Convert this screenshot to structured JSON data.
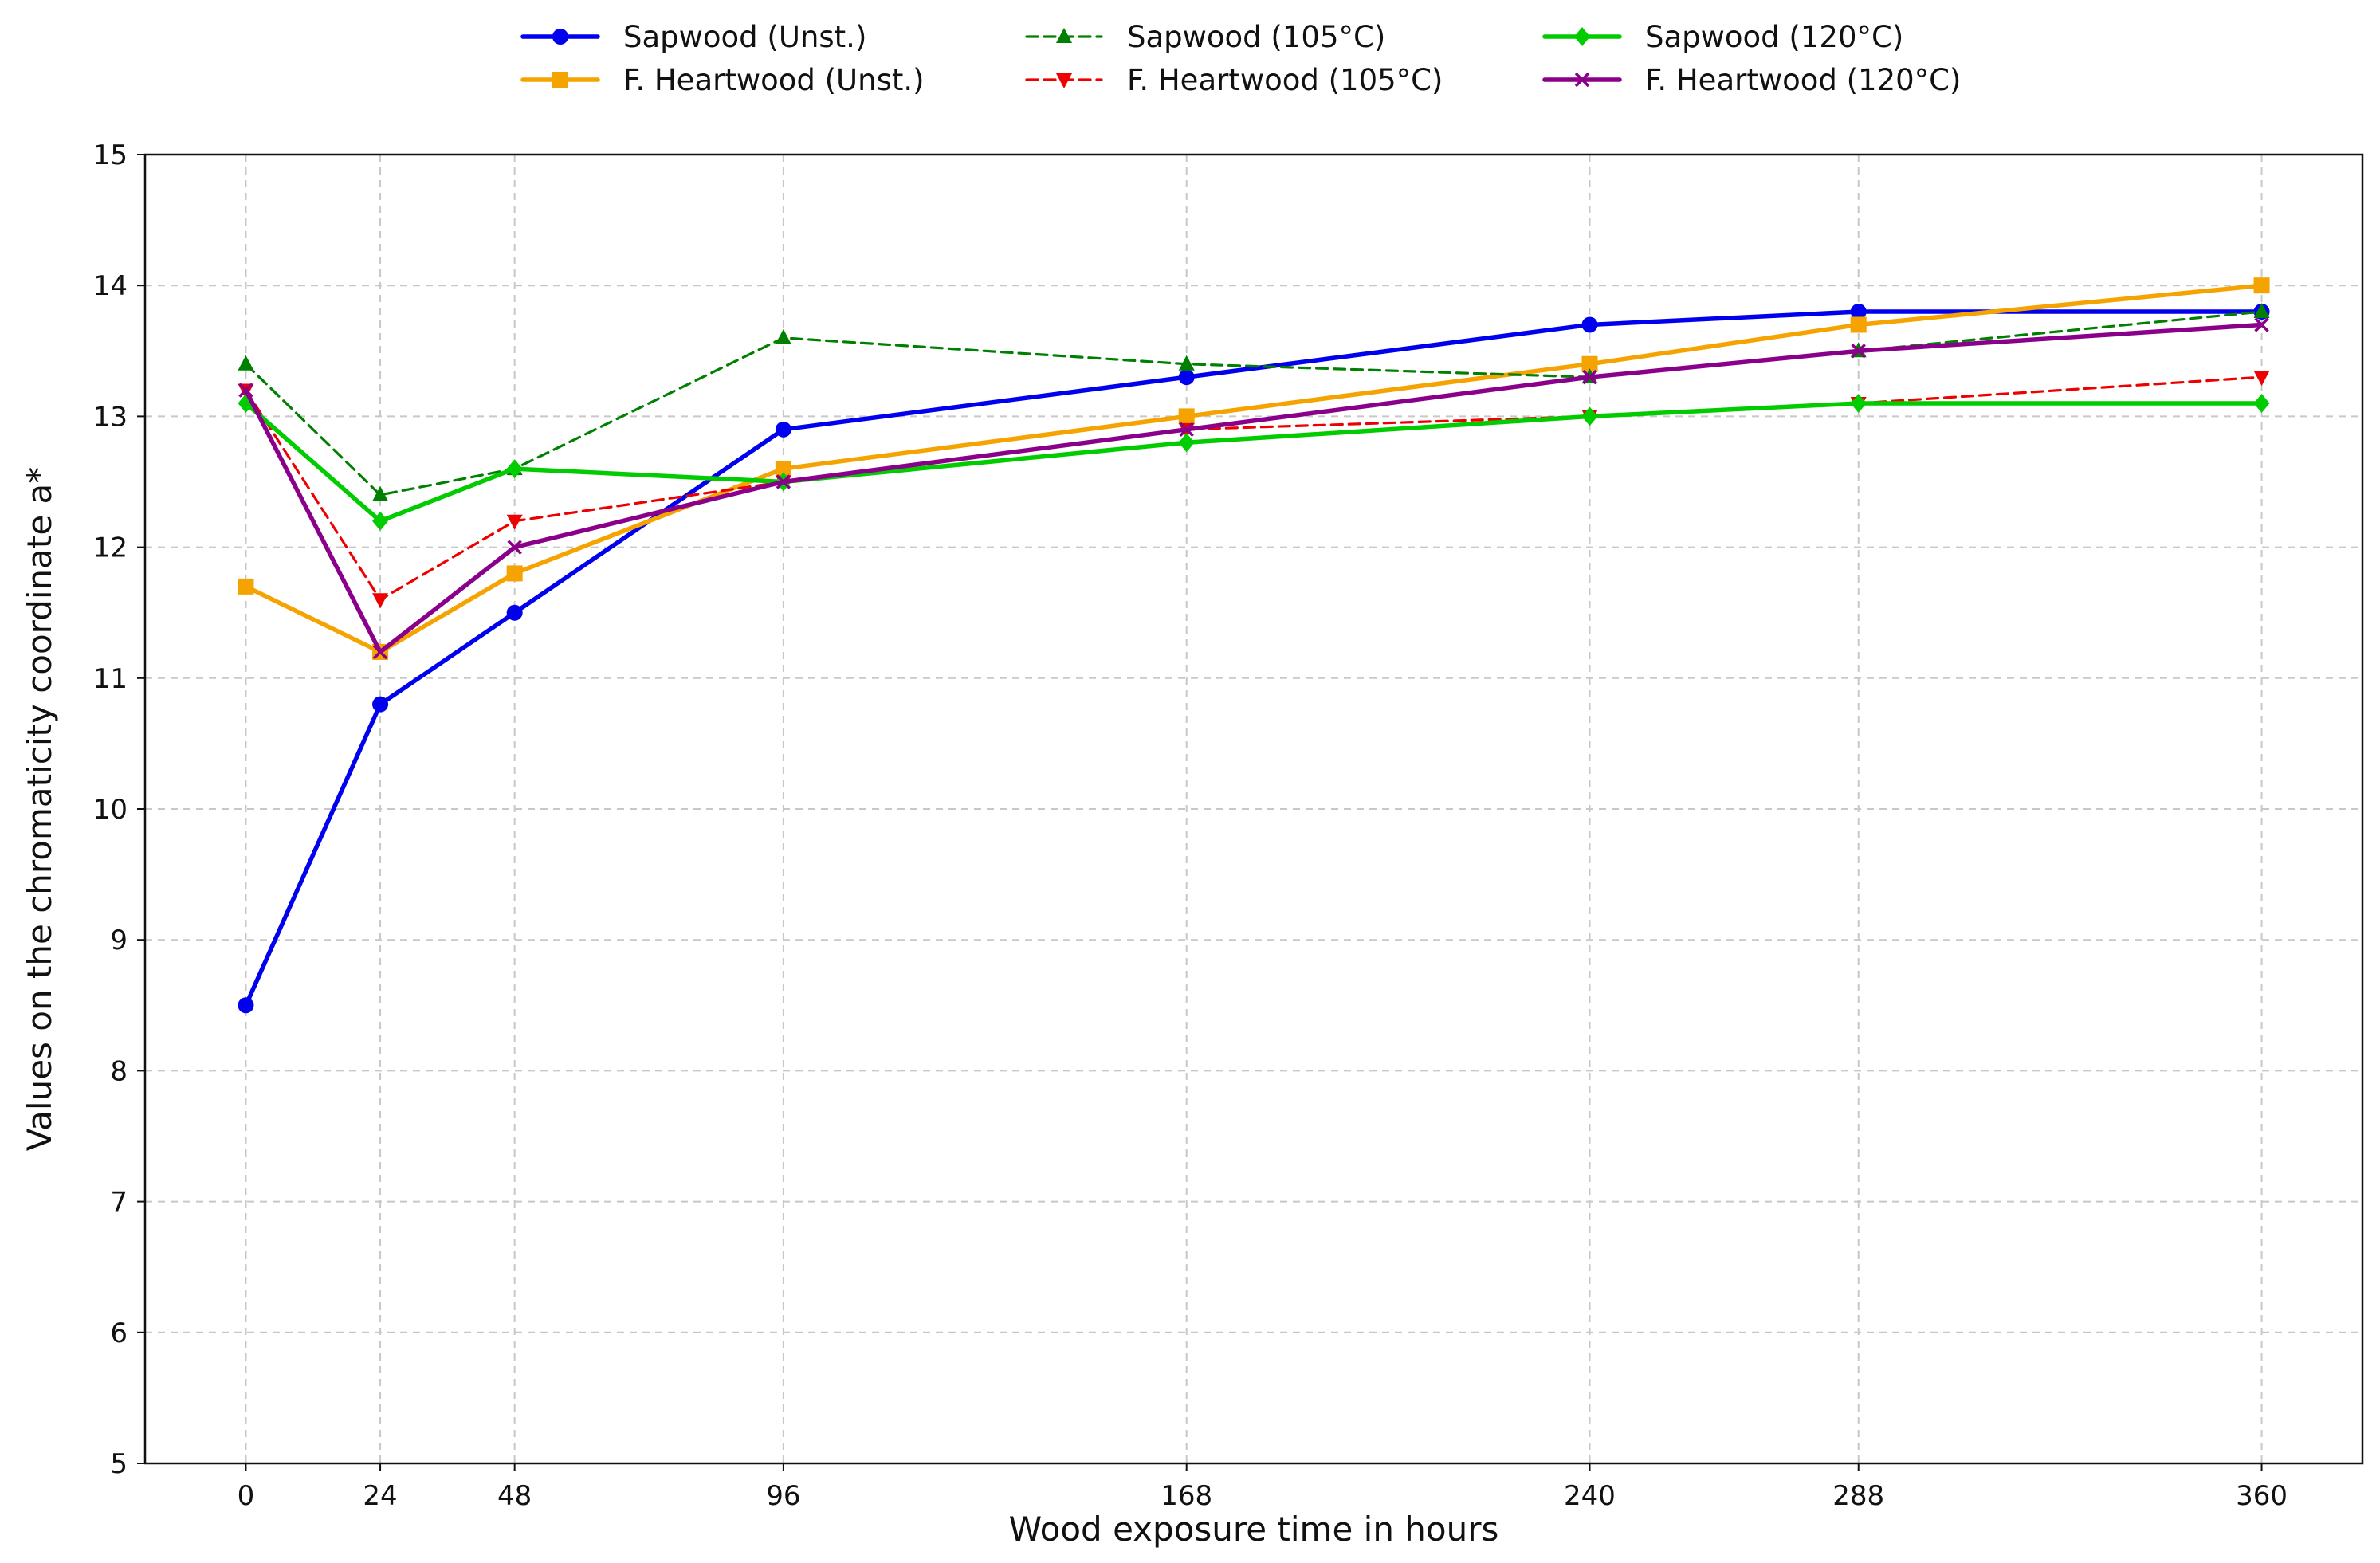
{
  "chart_data": {
    "type": "line",
    "xlabel": "Wood exposure time in hours",
    "ylabel": "Values on the chromaticity coordinate a*",
    "x": [
      0,
      24,
      48,
      96,
      168,
      240,
      288,
      360
    ],
    "x_tick_labels": [
      "0",
      "24",
      "48",
      "96",
      "168",
      "240",
      "288",
      "360"
    ],
    "y_tick_labels": [
      "5",
      "6",
      "7",
      "8",
      "9",
      "10",
      "11",
      "12",
      "13",
      "14",
      "15"
    ],
    "xlim": [
      -18,
      378
    ],
    "ylim": [
      5,
      15
    ],
    "grid": true,
    "legend_position": "top-center",
    "series": [
      {
        "name": "Sapwood (Unst.)",
        "values": [
          8.5,
          10.8,
          11.5,
          12.9,
          13.3,
          13.7,
          13.8,
          13.8
        ],
        "color": "#0000ee",
        "marker": "circle",
        "dash": "solid",
        "width": "thick"
      },
      {
        "name": "F. Heartwood (Unst.)",
        "values": [
          11.7,
          11.2,
          11.8,
          12.6,
          13.0,
          13.4,
          13.7,
          14.0
        ],
        "color": "#f5a300",
        "marker": "square",
        "dash": "solid",
        "width": "thick"
      },
      {
        "name": "Sapwood (105°C)",
        "values": [
          13.4,
          12.4,
          12.6,
          13.6,
          13.4,
          13.3,
          13.5,
          13.8
        ],
        "color": "#008000",
        "marker": "triangle-up",
        "dash": "dashed",
        "width": "thin"
      },
      {
        "name": "F. Heartwood (105°C)",
        "values": [
          13.2,
          11.6,
          12.2,
          12.5,
          12.9,
          13.0,
          13.1,
          13.3
        ],
        "color": "#ee0000",
        "marker": "triangle-down",
        "dash": "dashed",
        "width": "thin"
      },
      {
        "name": "Sapwood (120°C)",
        "values": [
          13.1,
          12.2,
          12.6,
          12.5,
          12.8,
          13.0,
          13.1,
          13.1
        ],
        "color": "#00cc00",
        "marker": "diamond",
        "dash": "solid",
        "width": "thick"
      },
      {
        "name": "F. Heartwood (120°C)",
        "values": [
          13.2,
          11.2,
          12.0,
          12.5,
          12.9,
          13.3,
          13.5,
          13.7
        ],
        "color": "#8b008b",
        "marker": "x",
        "dash": "solid",
        "width": "thick"
      }
    ]
  }
}
